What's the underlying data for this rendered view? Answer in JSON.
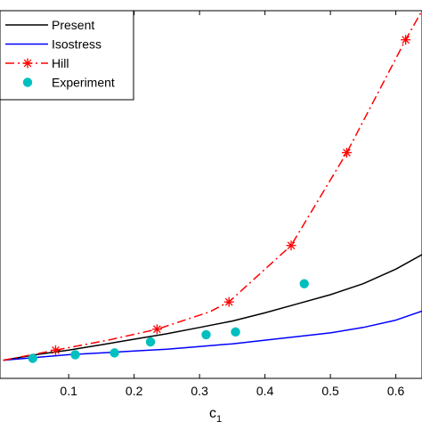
{
  "chart_data": {
    "type": "line",
    "title": "",
    "xlabel": "c",
    "xlabel_subscript": "1",
    "ylabel": "",
    "xlim": [
      -0.005,
      0.64
    ],
    "ylim": [
      0.0,
      2.02
    ],
    "x_ticks": [
      0.1,
      0.2,
      0.3,
      0.4,
      0.5,
      0.6
    ],
    "x_tick_labels": [
      "0.1",
      "0.2",
      "0.3",
      "0.4",
      "0.5",
      "0.6"
    ],
    "grid": false,
    "legend_position": "top-left",
    "series": [
      {
        "name": "Present",
        "style": "line",
        "color": "#000000",
        "x": [
          0.0,
          0.05,
          0.1,
          0.15,
          0.2,
          0.25,
          0.3,
          0.35,
          0.4,
          0.45,
          0.5,
          0.55,
          0.6,
          0.64
        ],
        "y": [
          0.1,
          0.13,
          0.155,
          0.185,
          0.215,
          0.245,
          0.28,
          0.315,
          0.36,
          0.41,
          0.46,
          0.52,
          0.6,
          0.68
        ]
      },
      {
        "name": "Isostress",
        "style": "line",
        "color": "#0000ff",
        "x": [
          0.0,
          0.05,
          0.1,
          0.15,
          0.2,
          0.25,
          0.3,
          0.35,
          0.4,
          0.45,
          0.5,
          0.55,
          0.6,
          0.64
        ],
        "y": [
          0.1,
          0.115,
          0.13,
          0.14,
          0.15,
          0.16,
          0.175,
          0.19,
          0.21,
          0.23,
          0.25,
          0.28,
          0.32,
          0.37
        ]
      },
      {
        "name": "Hill",
        "style": "dashdot-star",
        "color": "#ff0000",
        "x": [
          0.0,
          0.08,
          0.16,
          0.235,
          0.315,
          0.345,
          0.44,
          0.525,
          0.615,
          0.64
        ],
        "y": [
          0.1,
          0.155,
          0.21,
          0.27,
          0.365,
          0.42,
          0.73,
          1.24,
          1.86,
          2.02
        ],
        "markers_x": [
          0.08,
          0.235,
          0.345,
          0.44,
          0.525,
          0.615
        ],
        "markers_y": [
          0.155,
          0.27,
          0.42,
          0.73,
          1.24,
          1.86
        ]
      },
      {
        "name": "Experiment",
        "style": "markers",
        "color": "#00bfbf",
        "x": [
          0.045,
          0.11,
          0.17,
          0.225,
          0.31,
          0.355,
          0.46
        ],
        "y": [
          0.11,
          0.13,
          0.14,
          0.2,
          0.24,
          0.255,
          0.52
        ]
      }
    ]
  }
}
